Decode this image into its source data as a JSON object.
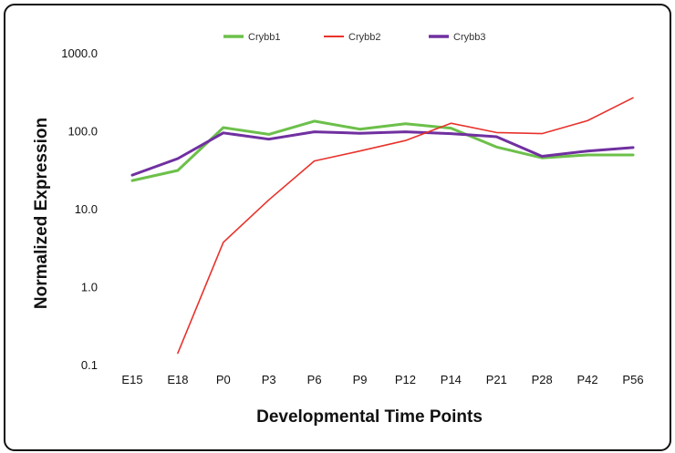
{
  "chart_data": {
    "type": "line",
    "title": "",
    "xlabel": "Developmental Time Points",
    "ylabel": "Normalized Expression",
    "y_scale": "log",
    "ylim": [
      0.1,
      1000
    ],
    "y_ticks": [
      "0.1",
      "1.0",
      "10.0",
      "100.0",
      "1000.0"
    ],
    "y_tick_values": [
      0.1,
      1,
      10,
      100,
      1000
    ],
    "grid": false,
    "legend_position": "top-center",
    "categories": [
      "E15",
      "E18",
      "P0",
      "P3",
      "P6",
      "P9",
      "P12",
      "P14",
      "P21",
      "P28",
      "P42",
      "P56"
    ],
    "series": [
      {
        "name": "Crybb1",
        "color": "#6cc04a",
        "values": [
          23,
          31,
          110,
          90,
          133,
          105,
          123,
          108,
          62,
          45,
          49,
          49
        ]
      },
      {
        "name": "Crybb2",
        "color": "#e8322b",
        "values": [
          null,
          0.14,
          3.7,
          13,
          41,
          55,
          75,
          125,
          95,
          92,
          135,
          265
        ]
      },
      {
        "name": "Crybb3",
        "color": "#7030a0",
        "values": [
          27,
          44,
          94,
          78,
          97,
          93,
          97,
          92,
          84,
          47,
          55,
          61
        ]
      }
    ]
  }
}
